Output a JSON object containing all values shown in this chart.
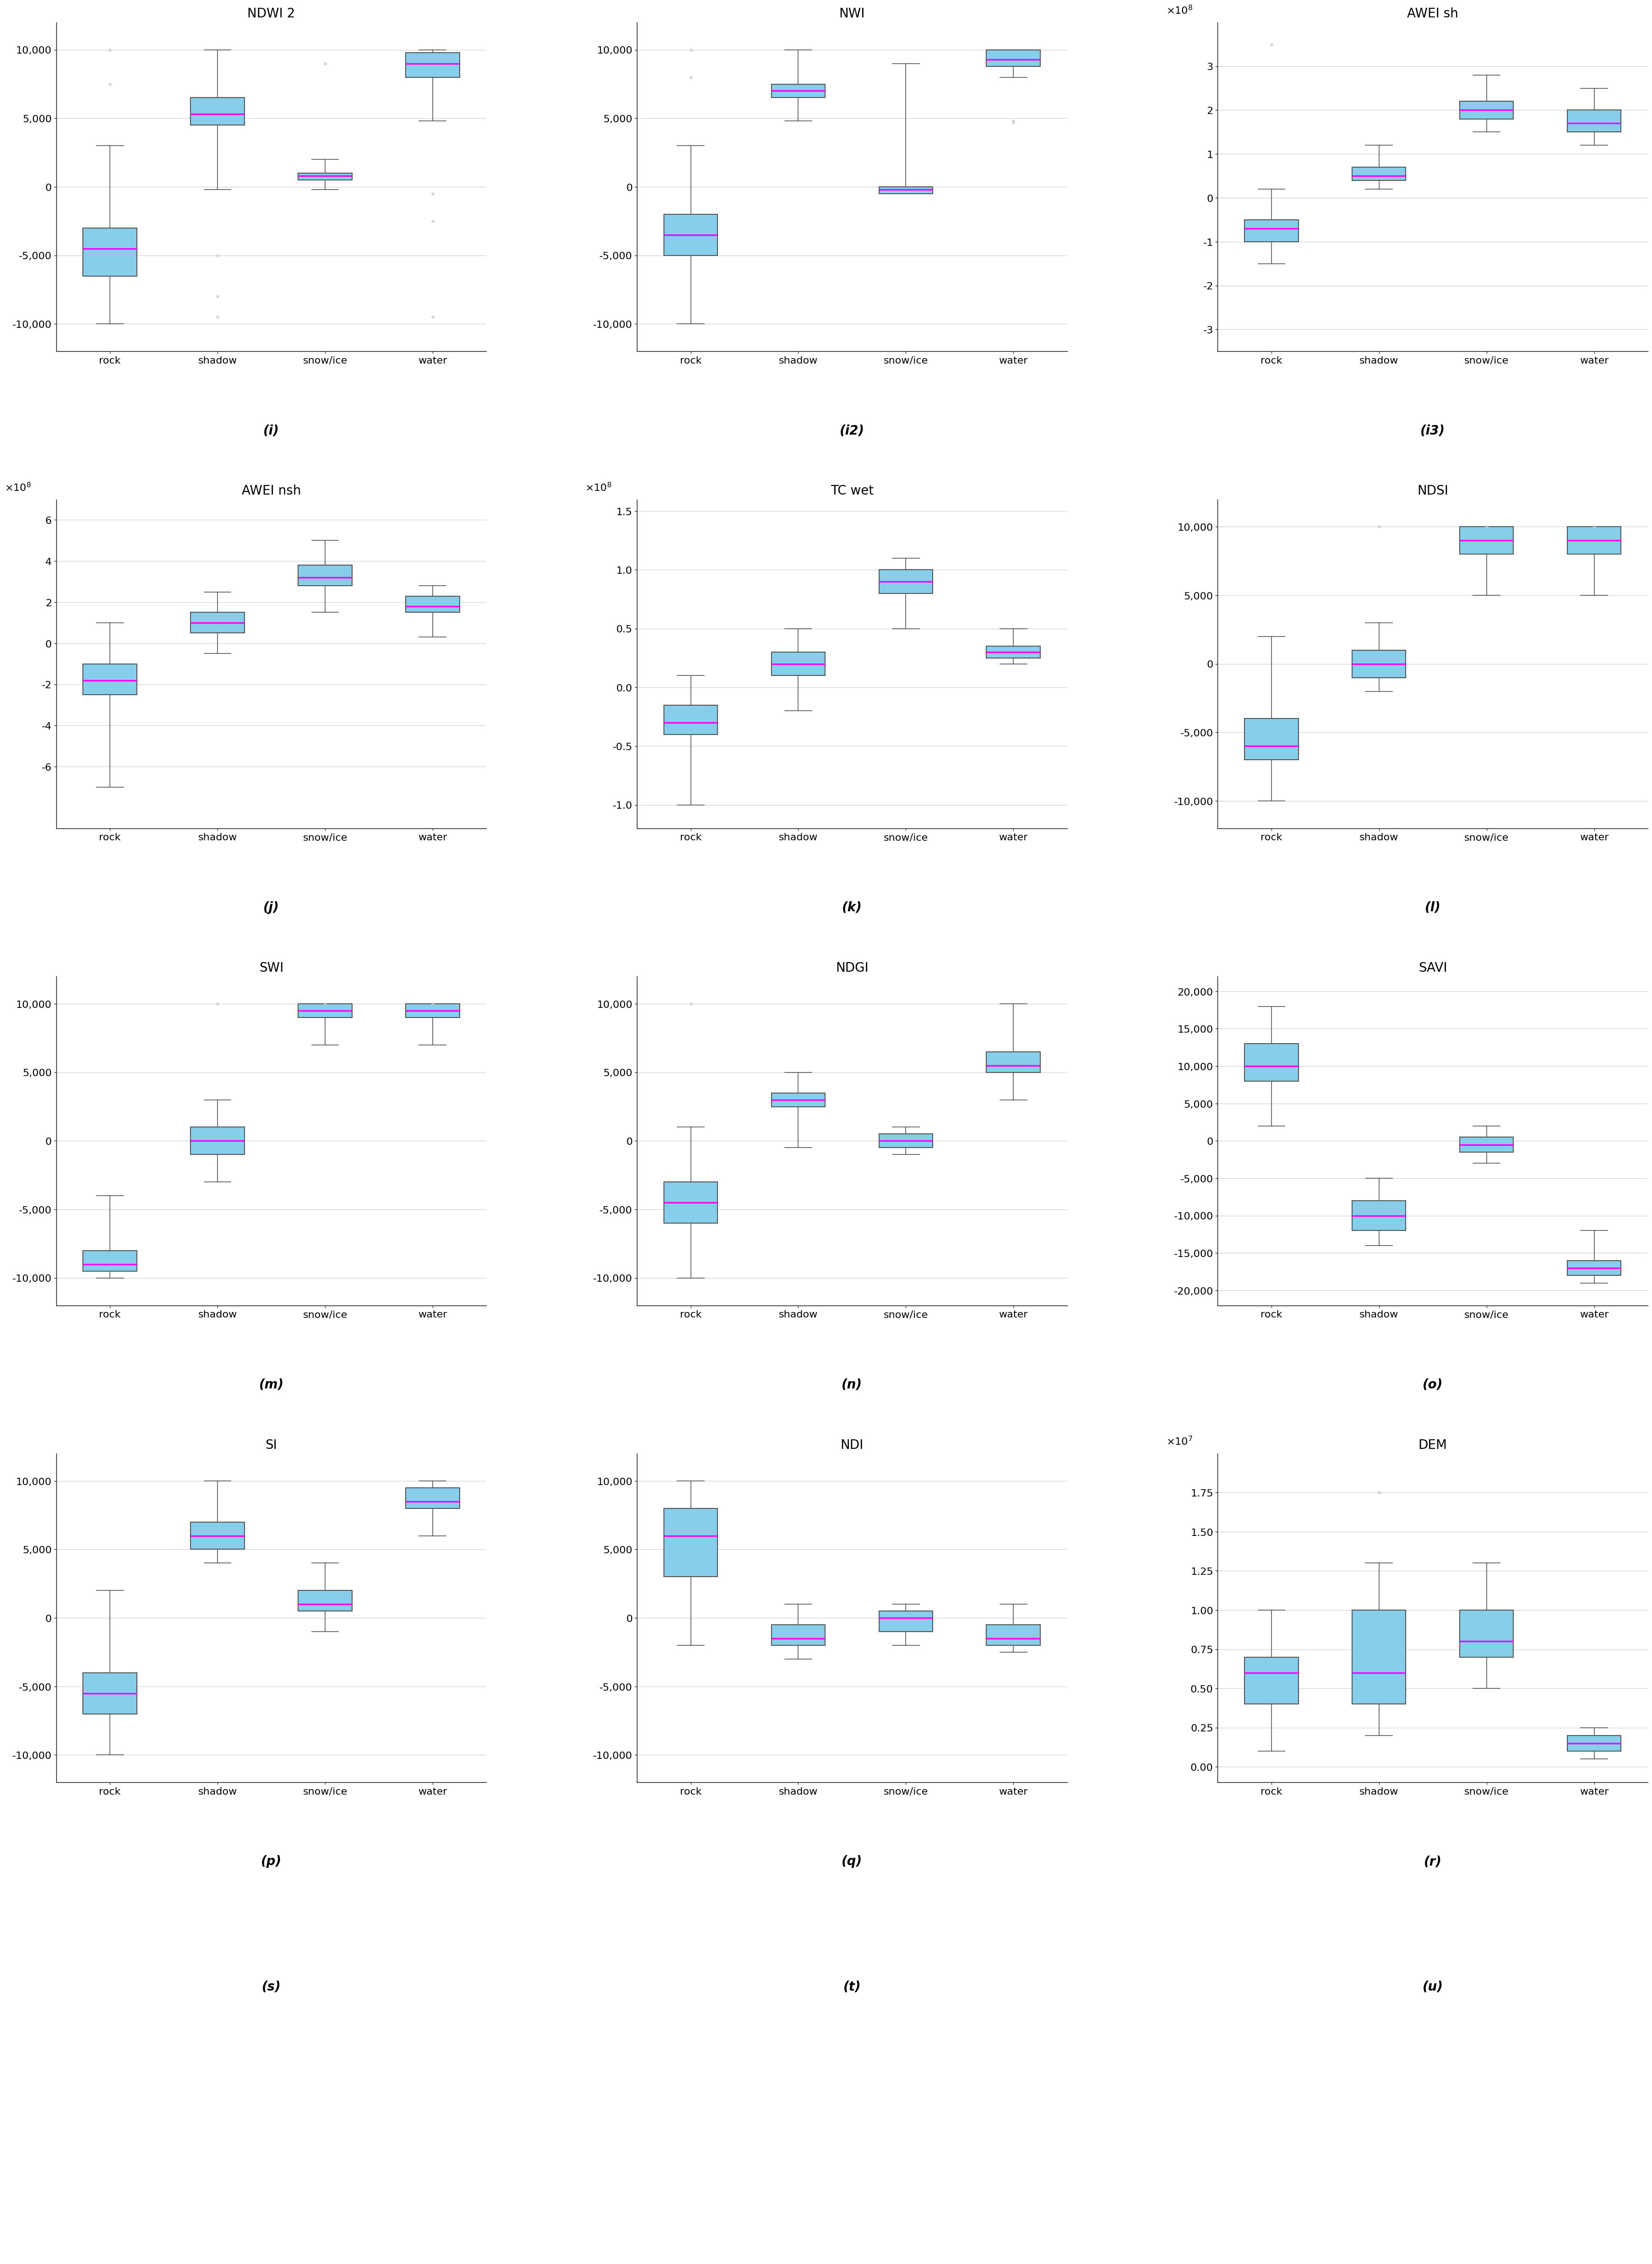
{
  "panels": [
    {
      "label": "(i)",
      "title": "NDWI 2",
      "categories": [
        "rock",
        "shadow",
        "snow/ice",
        "water"
      ],
      "box_data": [
        {
          "whislo": -10000,
          "q1": -6500,
          "med": -4500,
          "q3": -3000,
          "whishi": 3000,
          "fliers_low": [],
          "fliers_high": [
            10000,
            7500
          ]
        },
        {
          "whislo": -200,
          "q1": 4500,
          "med": 5300,
          "q3": 6500,
          "whishi": 10000,
          "fliers_low": [
            -5000,
            -8000,
            -9500
          ],
          "fliers_high": []
        },
        {
          "whislo": -200,
          "q1": 500,
          "med": 800,
          "q3": 1000,
          "whishi": 2000,
          "fliers_low": [],
          "fliers_high": [
            9000
          ]
        },
        {
          "whislo": 4800,
          "q1": 8000,
          "med": 9000,
          "q3": 9800,
          "whishi": 10000,
          "fliers_low": [
            -500,
            -2500,
            -9500
          ],
          "fliers_high": []
        }
      ],
      "ylim": [
        -12000,
        12000
      ],
      "yticks": [
        -10000,
        -5000,
        0,
        5000,
        10000
      ],
      "yticklabels": [
        "-10,000",
        "-5,000",
        "0",
        "5,000",
        "10,000"
      ],
      "ylabel_exp": null
    },
    {
      "label": "(i2)",
      "title": "NWI",
      "categories": [
        "rock",
        "shadow",
        "snow/ice",
        "water"
      ],
      "box_data": [
        {
          "whislo": -10000,
          "q1": -5000,
          "med": -3500,
          "q3": -2000,
          "whishi": 3000,
          "fliers_low": [],
          "fliers_high": [
            10000,
            8000
          ]
        },
        {
          "whislo": 4800,
          "q1": 6500,
          "med": 7000,
          "q3": 7500,
          "whishi": 10000,
          "fliers_low": [],
          "fliers_high": []
        },
        {
          "whislo": -500,
          "q1": -500,
          "med": -200,
          "q3": 0,
          "whishi": 9000,
          "fliers_low": [],
          "fliers_high": []
        },
        {
          "whislo": 8000,
          "q1": 8800,
          "med": 9300,
          "q3": 10000,
          "whishi": 10000,
          "fliers_low": [
            4800,
            4700
          ],
          "fliers_high": []
        }
      ],
      "ylim": [
        -12000,
        12000
      ],
      "yticks": [
        -10000,
        -5000,
        0,
        5000,
        10000
      ],
      "yticklabels": [
        "-10,000",
        "-5,000",
        "0",
        "5,000",
        "10,000"
      ],
      "ylabel_exp": null
    },
    {
      "label": "(i3)",
      "title": "AWEI sh",
      "categories": [
        "rock",
        "shadow",
        "snow/ice",
        "water"
      ],
      "box_data": [
        {
          "whislo": -150000000.0,
          "q1": -100000000.0,
          "med": -70000000.0,
          "q3": -50000000.0,
          "whishi": 20000000.0,
          "fliers_low": [],
          "fliers_high": [
            350000000.0
          ]
        },
        {
          "whislo": 20000000.0,
          "q1": 40000000.0,
          "med": 50000000.0,
          "q3": 70000000.0,
          "whishi": 120000000.0,
          "fliers_low": [],
          "fliers_high": []
        },
        {
          "whislo": 150000000.0,
          "q1": 180000000.0,
          "med": 200000000.0,
          "q3": 220000000.0,
          "whishi": 280000000.0,
          "fliers_low": [],
          "fliers_high": []
        },
        {
          "whislo": 120000000.0,
          "q1": 150000000.0,
          "med": 170000000.0,
          "q3": 200000000.0,
          "whishi": 250000000.0,
          "fliers_low": [],
          "fliers_high": []
        }
      ],
      "ylim": [
        -350000000.0,
        400000000.0
      ],
      "yticks": [
        -300000000.0,
        -200000000.0,
        -100000000.0,
        0,
        100000000.0,
        200000000.0,
        300000000.0
      ],
      "yticklabels": [
        "-3",
        "-2",
        "-1",
        "0",
        "1",
        "2",
        "3"
      ],
      "ylabel_exp": "1e8"
    },
    {
      "label": "(j)",
      "title": "AWEI nsh",
      "categories": [
        "rock",
        "shadow",
        "snow/ice",
        "water"
      ],
      "box_data": [
        {
          "whislo": -700000000.0,
          "q1": -250000000.0,
          "med": -180000000.0,
          "q3": -100000000.0,
          "whishi": 100000000.0,
          "fliers_low": [],
          "fliers_high": []
        },
        {
          "whislo": -50000000.0,
          "q1": 50000000.0,
          "med": 100000000.0,
          "q3": 150000000.0,
          "whishi": 250000000.0,
          "fliers_low": [],
          "fliers_high": []
        },
        {
          "whislo": 150000000.0,
          "q1": 280000000.0,
          "med": 320000000.0,
          "q3": 380000000.0,
          "whishi": 500000000.0,
          "fliers_low": [],
          "fliers_high": []
        },
        {
          "whislo": 30000000.0,
          "q1": 150000000.0,
          "med": 180000000.0,
          "q3": 230000000.0,
          "whishi": 280000000.0,
          "fliers_low": [],
          "fliers_high": []
        }
      ],
      "ylim": [
        -900000000.0,
        700000000.0
      ],
      "yticks": [
        -600000000.0,
        -400000000.0,
        -200000000.0,
        0,
        200000000.0,
        400000000.0,
        600000000.0
      ],
      "yticklabels": [
        "-6",
        "-4",
        "-2",
        "0",
        "2",
        "4",
        "6"
      ],
      "ylabel_exp": "1e8"
    },
    {
      "label": "(k)",
      "title": "TC wet",
      "categories": [
        "rock",
        "shadow",
        "snow/ice",
        "water"
      ],
      "box_data": [
        {
          "whislo": -100000000.0,
          "q1": -40000000.0,
          "med": -30000000.0,
          "q3": -15000000.0,
          "whishi": 10000000.0,
          "fliers_low": [],
          "fliers_high": []
        },
        {
          "whislo": -20000000.0,
          "q1": 10000000.0,
          "med": 20000000.0,
          "q3": 30000000.0,
          "whishi": 50000000.0,
          "fliers_low": [],
          "fliers_high": []
        },
        {
          "whislo": 50000000.0,
          "q1": 80000000.0,
          "med": 90000000.0,
          "q3": 100000000.0,
          "whishi": 110000000.0,
          "fliers_low": [],
          "fliers_high": []
        },
        {
          "whislo": 20000000.0,
          "q1": 25000000.0,
          "med": 30000000.0,
          "q3": 35000000.0,
          "whishi": 50000000.0,
          "fliers_low": [],
          "fliers_high": []
        }
      ],
      "ylim": [
        -120000000.0,
        160000000.0
      ],
      "yticks": [
        -100000000.0,
        -50000000.0,
        0,
        50000000.0,
        100000000.0,
        150000000.0
      ],
      "yticklabels": [
        "-1.0",
        "-0.5",
        "0.0",
        "0.5",
        "1.0",
        "1.5"
      ],
      "ylabel_exp": "1e8"
    },
    {
      "label": "(l)",
      "title": "NDSI",
      "categories": [
        "rock",
        "shadow",
        "snow/ice",
        "water"
      ],
      "box_data": [
        {
          "whislo": -10000,
          "q1": -7000,
          "med": -6000,
          "q3": -4000,
          "whishi": 2000,
          "fliers_low": [],
          "fliers_high": []
        },
        {
          "whislo": -2000,
          "q1": -1000,
          "med": 0,
          "q3": 1000,
          "whishi": 3000,
          "fliers_low": [],
          "fliers_high": [
            10000
          ]
        },
        {
          "whislo": 5000,
          "q1": 8000,
          "med": 9000,
          "q3": 10000,
          "whishi": 10000,
          "fliers_low": [],
          "fliers_high": [
            10000
          ]
        },
        {
          "whislo": 5000,
          "q1": 8000,
          "med": 9000,
          "q3": 10000,
          "whishi": 10000,
          "fliers_low": [],
          "fliers_high": [
            10000
          ]
        }
      ],
      "ylim": [
        -12000,
        12000
      ],
      "yticks": [
        -10000,
        -5000,
        0,
        5000,
        10000
      ],
      "yticklabels": [
        "-10,000",
        "-5,000",
        "0",
        "5,000",
        "10,000"
      ],
      "ylabel_exp": null
    },
    {
      "label": "(m)",
      "title": "SWI",
      "categories": [
        "rock",
        "shadow",
        "snow/ice",
        "water"
      ],
      "box_data": [
        {
          "whislo": -10000,
          "q1": -9500,
          "med": -9000,
          "q3": -8000,
          "whishi": -4000,
          "fliers_low": [],
          "fliers_high": []
        },
        {
          "whislo": -3000,
          "q1": -1000,
          "med": 0,
          "q3": 1000,
          "whishi": 3000,
          "fliers_low": [],
          "fliers_high": [
            10000
          ]
        },
        {
          "whislo": 7000,
          "q1": 9000,
          "med": 9500,
          "q3": 10000,
          "whishi": 10000,
          "fliers_low": [],
          "fliers_high": [
            10000
          ]
        },
        {
          "whislo": 7000,
          "q1": 9000,
          "med": 9500,
          "q3": 10000,
          "whishi": 10000,
          "fliers_low": [],
          "fliers_high": [
            10000
          ]
        }
      ],
      "ylim": [
        -12000,
        12000
      ],
      "yticks": [
        -10000,
        -5000,
        0,
        5000,
        10000
      ],
      "yticklabels": [
        "-10,000",
        "-5,000",
        "0",
        "5,000",
        "10,000"
      ],
      "ylabel_exp": null
    },
    {
      "label": "(n)",
      "title": "NDGI",
      "categories": [
        "rock",
        "shadow",
        "snow/ice",
        "water"
      ],
      "box_data": [
        {
          "whislo": -10000,
          "q1": -6000,
          "med": -4500,
          "q3": -3000,
          "whishi": 1000,
          "fliers_low": [],
          "fliers_high": [
            10000
          ]
        },
        {
          "whislo": -500,
          "q1": 2500,
          "med": 3000,
          "q3": 3500,
          "whishi": 5000,
          "fliers_low": [],
          "fliers_high": []
        },
        {
          "whislo": -1000,
          "q1": -500,
          "med": 0,
          "q3": 500,
          "whishi": 1000,
          "fliers_low": [],
          "fliers_high": []
        },
        {
          "whislo": 3000,
          "q1": 5000,
          "med": 5500,
          "q3": 6500,
          "whishi": 10000,
          "fliers_low": [],
          "fliers_high": []
        }
      ],
      "ylim": [
        -12000,
        12000
      ],
      "yticks": [
        -10000,
        -5000,
        0,
        5000,
        10000
      ],
      "yticklabels": [
        "-10,000",
        "-5,000",
        "0",
        "5,000",
        "10,000"
      ],
      "ylabel_exp": null
    },
    {
      "label": "(o)",
      "title": "SAVI",
      "categories": [
        "rock",
        "shadow",
        "snow/ice",
        "water"
      ],
      "box_data": [
        {
          "whislo": 2000,
          "q1": 8000,
          "med": 10000,
          "q3": 13000,
          "whishi": 18000,
          "fliers_low": [],
          "fliers_high": []
        },
        {
          "whislo": -14000,
          "q1": -12000,
          "med": -10000,
          "q3": -8000,
          "whishi": -5000,
          "fliers_low": [],
          "fliers_high": []
        },
        {
          "whislo": -3000,
          "q1": -1500,
          "med": -500,
          "q3": 500,
          "whishi": 2000,
          "fliers_low": [],
          "fliers_high": []
        },
        {
          "whislo": -19000,
          "q1": -18000,
          "med": -17000,
          "q3": -16000,
          "whishi": -12000,
          "fliers_low": [],
          "fliers_high": []
        }
      ],
      "ylim": [
        -22000,
        22000
      ],
      "yticks": [
        -20000,
        -15000,
        -10000,
        -5000,
        0,
        5000,
        10000,
        15000,
        20000
      ],
      "yticklabels": [
        "-20,000",
        "-15,000",
        "-10,000",
        "-5,000",
        "0",
        "5,000",
        "10,000",
        "15,000",
        "20,000"
      ],
      "ylabel_exp": null
    },
    {
      "label": "(p)",
      "title": "SI",
      "categories": [
        "rock",
        "shadow",
        "snow/ice",
        "water"
      ],
      "box_data": [
        {
          "whislo": -10000,
          "q1": -7000,
          "med": -5500,
          "q3": -4000,
          "whishi": 2000,
          "fliers_low": [],
          "fliers_high": []
        },
        {
          "whislo": 4000,
          "q1": 5000,
          "med": 6000,
          "q3": 7000,
          "whishi": 10000,
          "fliers_low": [],
          "fliers_high": []
        },
        {
          "whislo": -1000,
          "q1": 500,
          "med": 1000,
          "q3": 2000,
          "whishi": 4000,
          "fliers_low": [],
          "fliers_high": []
        },
        {
          "whislo": 6000,
          "q1": 8000,
          "med": 8500,
          "q3": 9500,
          "whishi": 10000,
          "fliers_low": [],
          "fliers_high": []
        }
      ],
      "ylim": [
        -12000,
        12000
      ],
      "yticks": [
        -10000,
        -5000,
        0,
        5000,
        10000
      ],
      "yticklabels": [
        "-10,000",
        "-5,000",
        "0",
        "5,000",
        "10,000"
      ],
      "ylabel_exp": null
    },
    {
      "label": "(q)",
      "title": "NDI",
      "categories": [
        "rock",
        "shadow",
        "snow/ice",
        "water"
      ],
      "box_data": [
        {
          "whislo": -2000,
          "q1": 3000,
          "med": 6000,
          "q3": 8000,
          "whishi": 10000,
          "fliers_low": [],
          "fliers_high": []
        },
        {
          "whislo": -3000,
          "q1": -2000,
          "med": -1500,
          "q3": -500,
          "whishi": 1000,
          "fliers_low": [],
          "fliers_high": []
        },
        {
          "whislo": -2000,
          "q1": -1000,
          "med": 0,
          "q3": 500,
          "whishi": 1000,
          "fliers_low": [],
          "fliers_high": []
        },
        {
          "whislo": -2500,
          "q1": -2000,
          "med": -1500,
          "q3": -500,
          "whishi": 1000,
          "fliers_low": [],
          "fliers_high": []
        }
      ],
      "ylim": [
        -12000,
        12000
      ],
      "yticks": [
        -10000,
        -5000,
        0,
        5000,
        10000
      ],
      "yticklabels": [
        "-10,000",
        "-5,000",
        "0",
        "5,000",
        "10,000"
      ],
      "ylabel_exp": null
    },
    {
      "label": "(r)",
      "title": "DEM",
      "categories": [
        "rock",
        "shadow",
        "snow/ice",
        "water"
      ],
      "box_data": [
        {
          "whislo": 1000000.0,
          "q1": 4000000.0,
          "med": 6000000.0,
          "q3": 7000000.0,
          "whishi": 10000000.0,
          "fliers_low": [],
          "fliers_high": []
        },
        {
          "whislo": 2000000.0,
          "q1": 4000000.0,
          "med": 6000000.0,
          "q3": 10000000.0,
          "whishi": 13000000.0,
          "fliers_low": [],
          "fliers_high": [
            17500000.0
          ]
        },
        {
          "whislo": 5000000.0,
          "q1": 7000000.0,
          "med": 8000000.0,
          "q3": 10000000.0,
          "whishi": 13000000.0,
          "fliers_low": [],
          "fliers_high": []
        },
        {
          "whislo": 500000.0,
          "q1": 1000000.0,
          "med": 1500000.0,
          "q3": 2000000.0,
          "whishi": 2500000.0,
          "fliers_low": [],
          "fliers_high": []
        }
      ],
      "ylim": [
        -1000000.0,
        20000000.0
      ],
      "yticks": [
        0,
        2500000.0,
        5000000.0,
        7500000.0,
        10000000.0,
        12500000.0,
        15000000.0,
        17500000.0
      ],
      "yticklabels": [
        "0.00",
        "0.25",
        "0.50",
        "0.75",
        "1.00",
        "1.25",
        "1.50",
        "1.75"
      ],
      "ylabel_exp": "1e7"
    }
  ],
  "panel_labels_bottom": [
    "(s)",
    "(t)",
    "(u)"
  ],
  "box_color": "#87CEEB",
  "box_edgecolor": "#555555",
  "median_color": "#FF00FF",
  "whisker_color": "#555555",
  "flier_color": "#CCCCCC",
  "grid_color": "#CCCCCC",
  "background_color": "#FFFFFF",
  "title_fontsize": 20,
  "label_fontsize": 18,
  "tick_fontsize": 16,
  "cat_fontsize": 16
}
